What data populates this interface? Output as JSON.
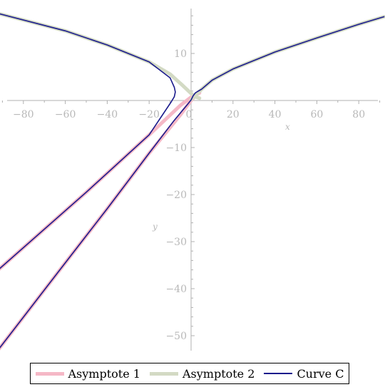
{
  "chart_data": {
    "type": "line",
    "title": "",
    "xlabel": "x",
    "ylabel": "y",
    "xlim": [
      -92,
      92
    ],
    "ylim": [
      -53,
      19
    ],
    "x_ticks": [
      -80,
      -60,
      -40,
      -20,
      0,
      20,
      40,
      60,
      80
    ],
    "y_ticks": [
      10,
      -10,
      -20,
      -30,
      -40,
      -50
    ],
    "x_tick_labels": [
      "−80",
      "−60",
      "−40",
      "−20",
      "0",
      "20",
      "40",
      "60",
      "80"
    ],
    "y_tick_labels": [
      "10",
      "−10",
      "−20",
      "−30",
      "−40",
      "−50"
    ],
    "legend_position": "bottom",
    "series": [
      {
        "name": "Asymptote 1",
        "color": "#f5b8c6",
        "segments": [
          [
            [
              -92,
              -36
            ],
            [
              -50,
              -19.5
            ],
            [
              -20,
              -7.3
            ],
            [
              -5,
              -1
            ],
            [
              0,
              0.7
            ],
            [
              4,
              1.6
            ]
          ],
          [
            [
              -92,
              -53
            ],
            [
              -60,
              -34.5
            ],
            [
              -40,
              -23
            ],
            [
              -20,
              -11.2
            ],
            [
              -5,
              -3
            ],
            [
              0,
              0
            ],
            [
              3,
              1.4
            ]
          ]
        ]
      },
      {
        "name": "Asymptote 2",
        "color": "#d3dac4",
        "segments": [
          [
            [
              -92,
              18.5
            ],
            [
              -60,
              14.8
            ],
            [
              -40,
              11.8
            ],
            [
              -20,
              8.2
            ],
            [
              -10,
              5.6
            ],
            [
              -4,
              3.2
            ],
            [
              0,
              1.5
            ],
            [
              2,
              0.8
            ],
            [
              4,
              0.5
            ]
          ],
          [
            [
              0,
              0.2
            ],
            [
              2,
              1.0
            ],
            [
              5,
              2.4
            ],
            [
              10,
              4.3
            ],
            [
              20,
              6.7
            ],
            [
              40,
              10.3
            ],
            [
              60,
              13.3
            ],
            [
              80,
              16.2
            ],
            [
              92,
              17.8
            ]
          ]
        ]
      },
      {
        "name": "Curve C",
        "color": "#1a1a8c",
        "segments": [
          [
            [
              -92,
              18.5
            ],
            [
              -60,
              14.8
            ],
            [
              -40,
              11.8
            ],
            [
              -20,
              8.2
            ],
            [
              -10,
              4.8
            ],
            [
              -8,
              2.8
            ],
            [
              -7.5,
              1.8
            ],
            [
              -8,
              0.8
            ],
            [
              -9.5,
              -0.3
            ],
            [
              -20,
              -7.3
            ],
            [
              -50,
              -19.5
            ],
            [
              -92,
              -36
            ]
          ],
          [
            [
              -92,
              -53
            ],
            [
              -60,
              -34.5
            ],
            [
              -40,
              -23
            ],
            [
              -20,
              -11.2
            ],
            [
              -8,
              -4.2
            ],
            [
              -2,
              -1
            ],
            [
              0,
              0.1
            ],
            [
              1,
              1.0
            ],
            [
              2,
              1.6
            ],
            [
              3,
              1.9
            ],
            [
              5,
              2.4
            ],
            [
              10,
              4.3
            ],
            [
              20,
              6.7
            ],
            [
              40,
              10.3
            ],
            [
              60,
              13.3
            ],
            [
              80,
              16.2
            ],
            [
              92,
              17.8
            ]
          ]
        ]
      }
    ]
  }
}
